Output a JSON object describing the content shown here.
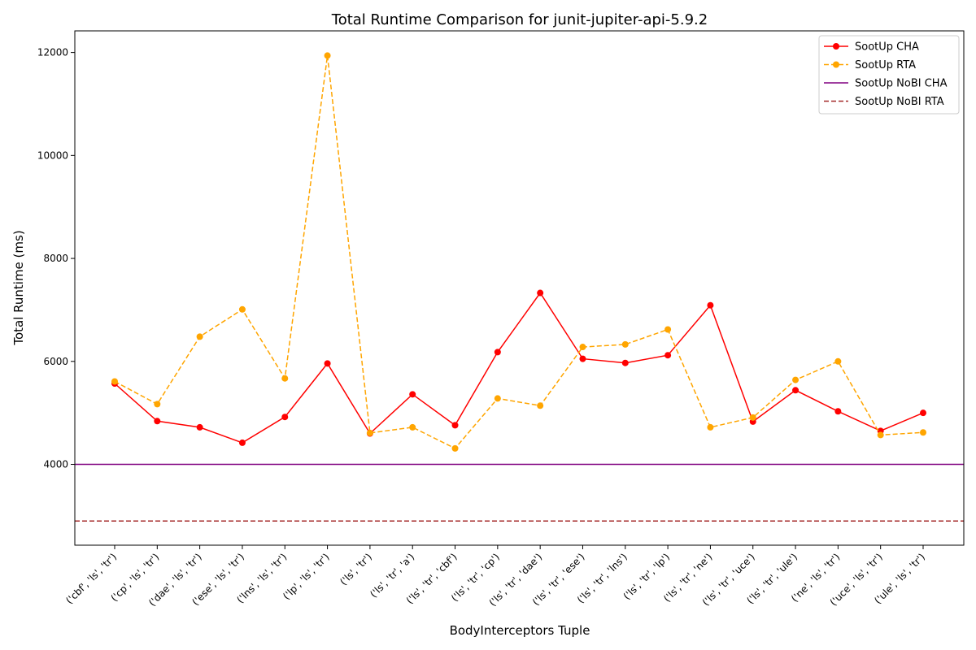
{
  "chart_data": {
    "type": "line",
    "title": "Total Runtime Comparison for junit-jupiter-api-5.9.2",
    "xlabel": "BodyInterceptors Tuple",
    "ylabel": "Total Runtime (ms)",
    "ylim": [
      2430,
      12420
    ],
    "yticks": [
      4000,
      6000,
      8000,
      10000,
      12000
    ],
    "grid": false,
    "legend_position": "top-right",
    "categories": [
      "('cbf', 'ls', 'tr')",
      "('cp', 'ls', 'tr')",
      "('dae', 'ls', 'tr')",
      "('ese', 'ls', 'tr')",
      "('lns', 'ls', 'tr')",
      "('lp', 'ls', 'tr')",
      "('ls', 'tr')",
      "('ls', 'tr', 'a')",
      "('ls', 'tr', 'cbf')",
      "('ls', 'tr', 'cp')",
      "('ls', 'tr', 'dae')",
      "('ls', 'tr', 'ese')",
      "('ls', 'tr', 'lns')",
      "('ls', 'tr', 'lp')",
      "('ls', 'tr', 'ne')",
      "('ls', 'tr', 'uce')",
      "('ls', 'tr', 'ule')",
      "('ne', 'ls', 'tr')",
      "('uce', 'ls', 'tr')",
      "('ule', 'ls', 'tr')"
    ],
    "series": [
      {
        "name": "SootUp CHA",
        "style": "solid-markers",
        "color": "#ff0000",
        "values": [
          5570,
          4840,
          4720,
          4420,
          4920,
          5960,
          4600,
          5360,
          4760,
          6180,
          7330,
          6050,
          5970,
          6120,
          7090,
          4830,
          5440,
          5030,
          4650,
          5000
        ]
      },
      {
        "name": "SootUp RTA",
        "style": "dashed-markers",
        "color": "#ffa500",
        "values": [
          5610,
          5170,
          6480,
          7010,
          5670,
          11940,
          4610,
          4720,
          4310,
          5280,
          5140,
          6280,
          6330,
          6620,
          4720,
          4910,
          5640,
          6000,
          4570,
          4620
        ]
      },
      {
        "name": "SootUp NoBI CHA",
        "style": "solid-hline",
        "color": "#800080",
        "value": 4000
      },
      {
        "name": "SootUp NoBI RTA",
        "style": "dashed-hline",
        "color": "#a52a2a",
        "value": 2900
      }
    ]
  }
}
